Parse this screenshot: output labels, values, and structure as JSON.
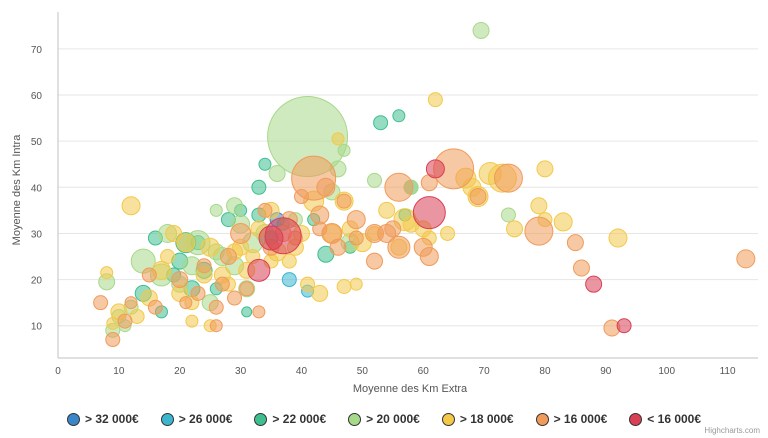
{
  "chart_data": {
    "type": "scatter",
    "xlabel": "Moyenne des Km Extra",
    "ylabel": "Moyenne des Km Intra",
    "xlim": [
      0,
      115
    ],
    "ylim": [
      3,
      78
    ],
    "xticks": [
      0,
      10,
      20,
      30,
      40,
      50,
      60,
      70,
      80,
      90,
      100,
      110
    ],
    "yticks": [
      10,
      20,
      30,
      40,
      50,
      60,
      70
    ],
    "grid": "horizontal",
    "legend_position": "bottom",
    "series": [
      {
        "name": "> 32 000€",
        "color": "#3a86c8",
        "points": [
          [
            36,
            33,
            7
          ]
        ]
      },
      {
        "name": "> 26 000€",
        "color": "#3cb6cf",
        "points": [
          [
            38,
            20,
            7
          ],
          [
            41,
            17.5,
            6
          ]
        ]
      },
      {
        "name": "> 22 000€",
        "color": "#3fbf8f",
        "points": [
          [
            16,
            29,
            7
          ],
          [
            17,
            13,
            6
          ],
          [
            20,
            24,
            8
          ],
          [
            21,
            28,
            10
          ],
          [
            24,
            22,
            8
          ],
          [
            26,
            18,
            6
          ],
          [
            28,
            33,
            7
          ],
          [
            30,
            35,
            6
          ],
          [
            31,
            13,
            5
          ],
          [
            33,
            40,
            7
          ],
          [
            34,
            45,
            6
          ],
          [
            35,
            29,
            7
          ],
          [
            37,
            32,
            6
          ],
          [
            42,
            33,
            6
          ],
          [
            44,
            25.5,
            8
          ],
          [
            48,
            27,
            6
          ],
          [
            53,
            54,
            7
          ],
          [
            56,
            55.5,
            6
          ],
          [
            57,
            34,
            6
          ],
          [
            58,
            40,
            7
          ],
          [
            14,
            17,
            8
          ],
          [
            19,
            21,
            7
          ],
          [
            22,
            18,
            8
          ],
          [
            23,
            28,
            7
          ],
          [
            33,
            34,
            7
          ]
        ]
      },
      {
        "name": "> 20 000€",
        "color": "#a8d88a",
        "points": [
          [
            8,
            19.5,
            8
          ],
          [
            9,
            9,
            7
          ],
          [
            10,
            12,
            7
          ],
          [
            12,
            14,
            7
          ],
          [
            14,
            24,
            12
          ],
          [
            17,
            21,
            11
          ],
          [
            18,
            30,
            9
          ],
          [
            20,
            19,
            8
          ],
          [
            22,
            23,
            9
          ],
          [
            23,
            28,
            12
          ],
          [
            25,
            15,
            8
          ],
          [
            26,
            26,
            8
          ],
          [
            27,
            25,
            9
          ],
          [
            29,
            36,
            8
          ],
          [
            30,
            32,
            9
          ],
          [
            31,
            18,
            8
          ],
          [
            32,
            28,
            10
          ],
          [
            34,
            30,
            9
          ],
          [
            36,
            43,
            8
          ],
          [
            41,
            51,
            40
          ],
          [
            45,
            39,
            8
          ],
          [
            46,
            44,
            8
          ],
          [
            47,
            48,
            6
          ],
          [
            48,
            28,
            9
          ],
          [
            52,
            41.5,
            7
          ],
          [
            58,
            40,
            7
          ],
          [
            69.5,
            74,
            8
          ],
          [
            74,
            34,
            7
          ],
          [
            11,
            10,
            6
          ],
          [
            26,
            35,
            6
          ],
          [
            29,
            23,
            9
          ],
          [
            39,
            33,
            7
          ]
        ]
      },
      {
        "name": "> 18 000€",
        "color": "#f3c94a",
        "points": [
          [
            8,
            21.5,
            6
          ],
          [
            9,
            10.5,
            6
          ],
          [
            10,
            13,
            8
          ],
          [
            12,
            36,
            9
          ],
          [
            13,
            12,
            7
          ],
          [
            15,
            16,
            8
          ],
          [
            17,
            22,
            9
          ],
          [
            18,
            25,
            7
          ],
          [
            19,
            30,
            8
          ],
          [
            20,
            17,
            8
          ],
          [
            21,
            28,
            9
          ],
          [
            22,
            15,
            7
          ],
          [
            22,
            11,
            6
          ],
          [
            24,
            21,
            8
          ],
          [
            25,
            27,
            9
          ],
          [
            25,
            10,
            6
          ],
          [
            27,
            21,
            8
          ],
          [
            28,
            19,
            7
          ],
          [
            29,
            26,
            8
          ],
          [
            31,
            22,
            8
          ],
          [
            32,
            25,
            7
          ],
          [
            33,
            31,
            8
          ],
          [
            35,
            35,
            8
          ],
          [
            36,
            26,
            9
          ],
          [
            38,
            24,
            7
          ],
          [
            39,
            27,
            8
          ],
          [
            40,
            30,
            8
          ],
          [
            41,
            19,
            7
          ],
          [
            42,
            37,
            10
          ],
          [
            43,
            17,
            8
          ],
          [
            45,
            30,
            9
          ],
          [
            46,
            50.5,
            6
          ],
          [
            47,
            37,
            9
          ],
          [
            47,
            18.5,
            7
          ],
          [
            48,
            31,
            8
          ],
          [
            49,
            19,
            6
          ],
          [
            50,
            28,
            9
          ],
          [
            52,
            30,
            7
          ],
          [
            54,
            35,
            8
          ],
          [
            56,
            27,
            8
          ],
          [
            57,
            33,
            11
          ],
          [
            58,
            32,
            8
          ],
          [
            60,
            31,
            8
          ],
          [
            61,
            29,
            7
          ],
          [
            62,
            59,
            7
          ],
          [
            64,
            30,
            7
          ],
          [
            67,
            42,
            10
          ],
          [
            68,
            40,
            9
          ],
          [
            69,
            38,
            10
          ],
          [
            71,
            43,
            11
          ],
          [
            73,
            42,
            14
          ],
          [
            75,
            31,
            8
          ],
          [
            79,
            36,
            8
          ],
          [
            80,
            44,
            8
          ],
          [
            80,
            33,
            7
          ],
          [
            83,
            32.5,
            9
          ],
          [
            92,
            29,
            9
          ],
          [
            35,
            24,
            7
          ],
          [
            30,
            27,
            8
          ]
        ]
      },
      {
        "name": "> 16 000€",
        "color": "#f09b5a",
        "points": [
          [
            7,
            15,
            7
          ],
          [
            9,
            7,
            7
          ],
          [
            11,
            11,
            7
          ],
          [
            12,
            15,
            6
          ],
          [
            15,
            21,
            7
          ],
          [
            16,
            14,
            7
          ],
          [
            20,
            20,
            8
          ],
          [
            21,
            15,
            6
          ],
          [
            23,
            17,
            7
          ],
          [
            24,
            23,
            7
          ],
          [
            26,
            10,
            6
          ],
          [
            26,
            14,
            7
          ],
          [
            27,
            19,
            7
          ],
          [
            28,
            25,
            8
          ],
          [
            29,
            16,
            7
          ],
          [
            30,
            30,
            10
          ],
          [
            31,
            18,
            7
          ],
          [
            33,
            13,
            6
          ],
          [
            34,
            35,
            7
          ],
          [
            35,
            27,
            8
          ],
          [
            37,
            30,
            8
          ],
          [
            38,
            33,
            8
          ],
          [
            39,
            29,
            7
          ],
          [
            40,
            38,
            7
          ],
          [
            42,
            42,
            22
          ],
          [
            43,
            34,
            9
          ],
          [
            44,
            40,
            9
          ],
          [
            45,
            30,
            10
          ],
          [
            46,
            27,
            8
          ],
          [
            47,
            37,
            7
          ],
          [
            49,
            33,
            9
          ],
          [
            52,
            30,
            9
          ],
          [
            52,
            24,
            8
          ],
          [
            54,
            30,
            9
          ],
          [
            55,
            31,
            8
          ],
          [
            56,
            40,
            14
          ],
          [
            56,
            27,
            11
          ],
          [
            60,
            27,
            9
          ],
          [
            61,
            41,
            8
          ],
          [
            61,
            25,
            9
          ],
          [
            65,
            44,
            20
          ],
          [
            69,
            38,
            8
          ],
          [
            74,
            42,
            14
          ],
          [
            79,
            30.5,
            14
          ],
          [
            85,
            28,
            8
          ],
          [
            86,
            22.5,
            8
          ],
          [
            91,
            9.5,
            8
          ],
          [
            113,
            24.5,
            9
          ],
          [
            43,
            31,
            7
          ],
          [
            49,
            29,
            7
          ]
        ]
      },
      {
        "name": "< 16 000€",
        "color": "#d94055",
        "points": [
          [
            33,
            22,
            11
          ],
          [
            35,
            29,
            12
          ],
          [
            37,
            29.5,
            18
          ],
          [
            61,
            34.5,
            16
          ],
          [
            62,
            44,
            9
          ],
          [
            88,
            19,
            8
          ],
          [
            93,
            10,
            7
          ]
        ]
      }
    ]
  },
  "credit": "Highcharts.com"
}
